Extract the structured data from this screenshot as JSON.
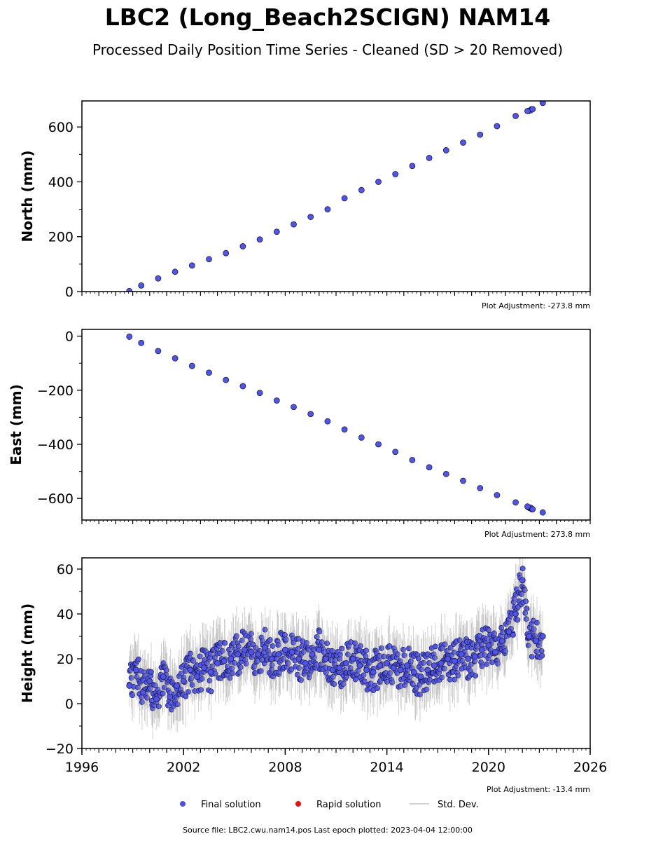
{
  "figure": {
    "title": "LBC2 (Long_Beach2SCIGN) NAM14",
    "subtitle": "Processed Daily Position Time Series - Cleaned (SD > 20 Removed)",
    "footer": "Source file: LBC2.cwu.nam14.pos  Last epoch plotted: 2023-04-04 12:00:00"
  },
  "legend": {
    "items": [
      {
        "label": "Final solution",
        "color": "#4a4fe8",
        "marker": "circle"
      },
      {
        "label": "Rapid solution",
        "color": "#e81010",
        "marker": "circle"
      },
      {
        "label": "Std. Dev.",
        "color": "#c8c8c8",
        "marker": "line"
      }
    ]
  },
  "colors": {
    "point_fill": "#4f54ee",
    "point_edge": "#1b1b4a",
    "std_dev": "#9a9a9a"
  },
  "chart_data": [
    {
      "type": "scatter",
      "ylabel": "North (mm)",
      "adjustment": "Plot Adjustment: -273.8 mm",
      "xlim": [
        1996,
        2026
      ],
      "ylim": [
        0,
        695
      ],
      "y_ticks": [
        0,
        200,
        400,
        600
      ],
      "y_tick_labels": [
        "0",
        "200",
        "400",
        "600"
      ],
      "x": [
        1998.8,
        1999.5,
        2000.5,
        2001.5,
        2002.5,
        2003.5,
        2004.5,
        2005.5,
        2006.5,
        2007.5,
        2008.5,
        2009.5,
        2010.5,
        2011.5,
        2012.5,
        2013.5,
        2014.5,
        2015.5,
        2016.5,
        2017.5,
        2018.5,
        2019.5,
        2020.5,
        2021.6,
        2022.3,
        2022.6,
        2023.2
      ],
      "y": [
        2,
        22,
        48,
        72,
        95,
        118,
        140,
        165,
        190,
        218,
        245,
        272,
        300,
        340,
        370,
        400,
        428,
        458,
        487,
        515,
        543,
        572,
        603,
        640,
        658,
        665,
        688
      ]
    },
    {
      "type": "scatter",
      "ylabel": "East (mm)",
      "adjustment": "Plot Adjustment: 273.8 mm",
      "xlim": [
        1996,
        2026
      ],
      "ylim": [
        -680,
        25
      ],
      "y_ticks": [
        -600,
        -400,
        -200,
        0
      ],
      "y_tick_labels": [
        "−600",
        "−400",
        "−200",
        "0"
      ],
      "x": [
        1998.8,
        1999.5,
        2000.5,
        2001.5,
        2002.5,
        2003.5,
        2004.5,
        2005.5,
        2006.5,
        2007.5,
        2008.5,
        2009.5,
        2010.5,
        2011.5,
        2012.5,
        2013.5,
        2014.5,
        2015.5,
        2016.5,
        2017.5,
        2018.5,
        2019.5,
        2020.5,
        2021.6,
        2022.3,
        2022.6,
        2023.2
      ],
      "y": [
        -2,
        -25,
        -55,
        -82,
        -110,
        -135,
        -162,
        -185,
        -210,
        -238,
        -262,
        -288,
        -315,
        -345,
        -375,
        -400,
        -428,
        -458,
        -485,
        -510,
        -535,
        -562,
        -588,
        -615,
        -630,
        -640,
        -652
      ]
    },
    {
      "type": "scatter",
      "ylabel": "Height (mm)",
      "adjustment": "Plot Adjustment: -13.4 mm",
      "xlim": [
        1996,
        2026
      ],
      "ylim": [
        -20,
        65
      ],
      "y_ticks": [
        -20,
        0,
        20,
        40,
        60
      ],
      "y_tick_labels": [
        "−20",
        "0",
        "20",
        "40",
        "60"
      ],
      "x_ticks": [
        1996,
        2002,
        2008,
        2014,
        2020,
        2026
      ],
      "x_tick_labels": [
        "1996",
        "2002",
        "2008",
        "2014",
        "2020",
        "2026"
      ],
      "x": [
        1998.8,
        1999.2,
        1999.6,
        2000.0,
        2000.4,
        2000.8,
        2001.2,
        2001.6,
        2002.0,
        2002.4,
        2002.8,
        2003.2,
        2003.6,
        2004.0,
        2004.4,
        2004.8,
        2005.2,
        2005.6,
        2006.0,
        2006.4,
        2006.8,
        2007.2,
        2007.6,
        2008.0,
        2008.4,
        2008.8,
        2009.2,
        2009.6,
        2010.0,
        2010.4,
        2010.8,
        2011.2,
        2011.6,
        2012.0,
        2012.4,
        2012.8,
        2013.2,
        2013.6,
        2014.0,
        2014.4,
        2014.8,
        2015.2,
        2015.6,
        2016.0,
        2016.4,
        2016.8,
        2017.2,
        2017.6,
        2018.0,
        2018.4,
        2018.8,
        2019.2,
        2019.6,
        2020.0,
        2020.4,
        2020.8,
        2021.2,
        2021.6,
        2022.0,
        2022.4,
        2022.8,
        2023.2
      ],
      "y": [
        8,
        15,
        5,
        10,
        2,
        12,
        3,
        8,
        10,
        15,
        12,
        16,
        14,
        18,
        19,
        20,
        22,
        24,
        23,
        22,
        25,
        20,
        22,
        24,
        23,
        20,
        18,
        22,
        24,
        20,
        15,
        16,
        18,
        20,
        17,
        15,
        14,
        17,
        18,
        16,
        15,
        17,
        14,
        12,
        15,
        17,
        18,
        20,
        19,
        22,
        20,
        21,
        24,
        26,
        23,
        28,
        32,
        40,
        55,
        30,
        28,
        30
      ]
    }
  ]
}
